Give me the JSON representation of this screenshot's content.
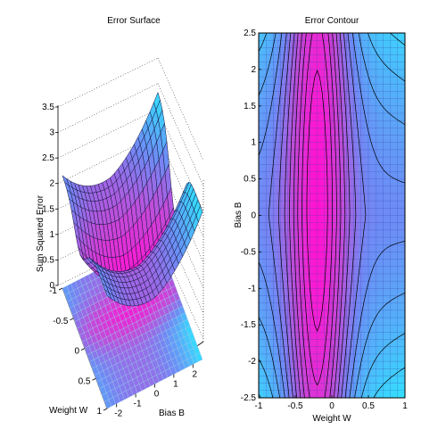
{
  "figure": {
    "background": "#ffffff"
  },
  "chart_data": [
    {
      "type": "surface",
      "title": "Error Surface",
      "xlabel": "Weight W",
      "ylabel": "Bias B",
      "zlabel": "Sum Squared Error",
      "xlim": [
        -1,
        1
      ],
      "ylim": [
        -2.5,
        2.5
      ],
      "zlim": [
        0,
        3.5
      ],
      "x_ticks": [
        -1,
        -0.5,
        0,
        0.5,
        1
      ],
      "y_ticks": [
        -2,
        -1,
        0,
        1,
        2
      ],
      "z_ticks": [
        0,
        0.5,
        1,
        1.5,
        2,
        2.5,
        3,
        3.5
      ],
      "colormap": [
        "#33e0ff",
        "#6d8cf5",
        "#c14cd9",
        "#ff14d2"
      ],
      "grid": true,
      "projection_below": true
    },
    {
      "type": "heatmap",
      "title": "Error Contour",
      "xlabel": "Weight W",
      "ylabel": "Bias B",
      "xlim": [
        -1,
        1
      ],
      "ylim": [
        -2.5,
        2.5
      ],
      "x_ticks": [
        -1,
        -0.5,
        0,
        0.5,
        1
      ],
      "y_ticks": [
        -2.5,
        -2,
        -1.5,
        -1,
        -0.5,
        0,
        0.5,
        1,
        1.5,
        2,
        2.5
      ],
      "minimum": {
        "x": -0.2,
        "y": 0.2
      },
      "colormap": [
        "#33e0ff",
        "#6d8cf5",
        "#c14cd9",
        "#ff14d2"
      ],
      "grid": true
    }
  ]
}
